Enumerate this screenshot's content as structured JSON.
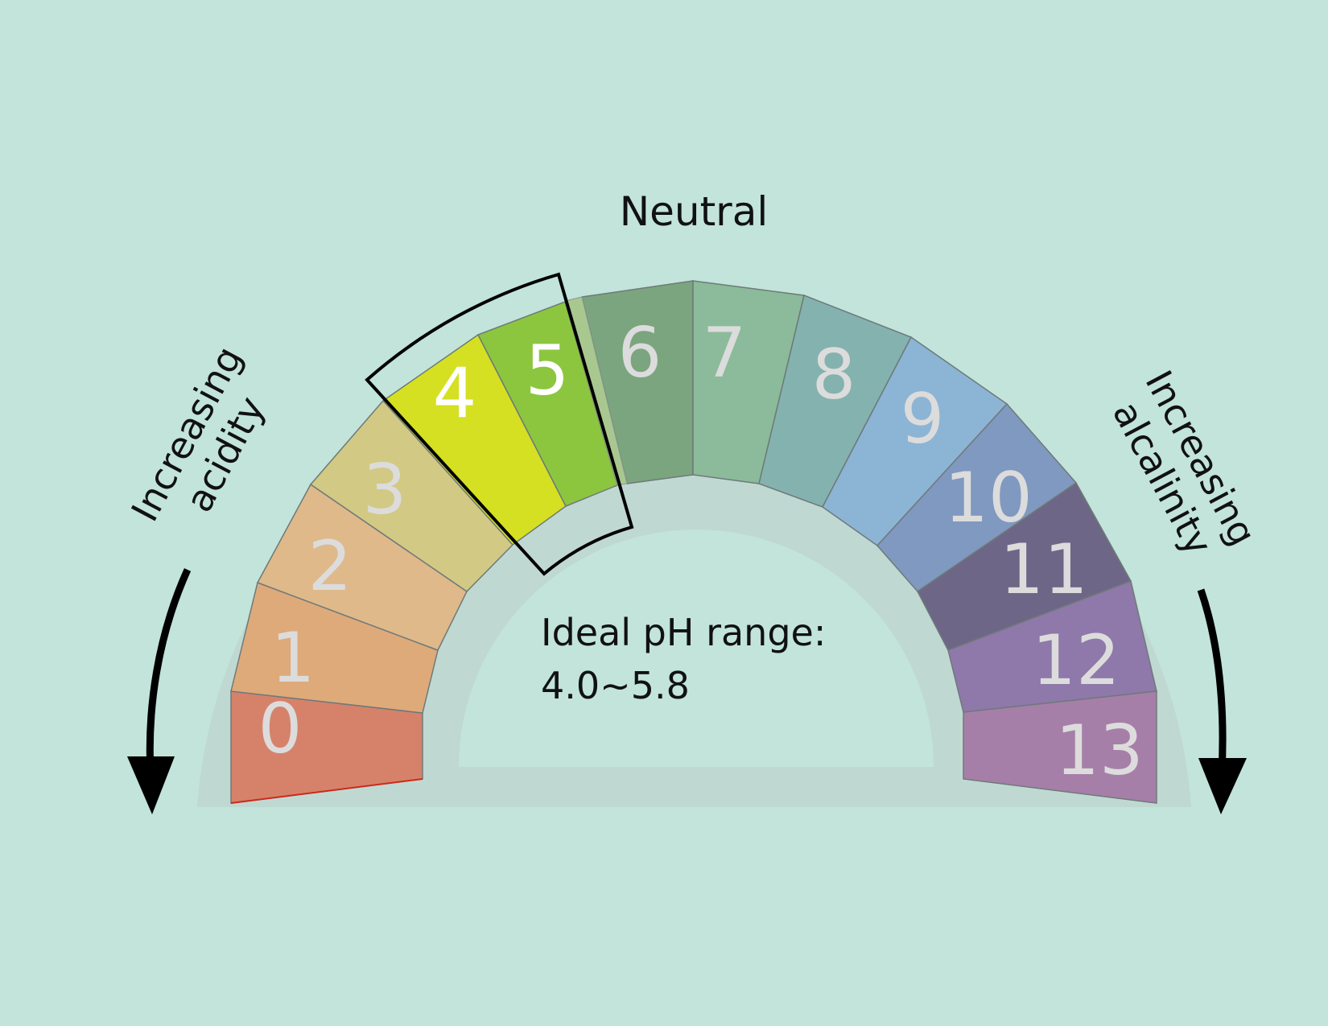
{
  "title": "",
  "labels": {
    "neutral": "Neutral",
    "acidity_line1": "Increasing",
    "acidity_line2": "acidity",
    "alkalinity_line1": "Increasing",
    "alkalinity_line2": "alcalinity",
    "ideal_line1": "Ideal pH range:",
    "ideal_line2": "4.0~5.8"
  },
  "ideal_range": {
    "min": 4.0,
    "max": 5.8
  },
  "colors": {
    "background": "#c2e4da",
    "track": "#c0d8d2",
    "number_text": "#dcdcdc",
    "highlight_number_text": "#ffffff",
    "highlight_frame": "#000000",
    "neutral_sliver": "#a8c890"
  },
  "segments": [
    {
      "ph": "0",
      "color": "#d6826b"
    },
    {
      "ph": "1",
      "color": "#deaa7a"
    },
    {
      "ph": "2",
      "color": "#dfb98a"
    },
    {
      "ph": "3",
      "color": "#d2c984"
    },
    {
      "ph": "4",
      "color": "#d5e022"
    },
    {
      "ph": "5",
      "color": "#8cc63f"
    },
    {
      "ph": "6",
      "color": "#7ba57e"
    },
    {
      "ph": "7",
      "color": "#8bbb9a"
    },
    {
      "ph": "8",
      "color": "#84b2af"
    },
    {
      "ph": "9",
      "color": "#8cb4d5"
    },
    {
      "ph": "10",
      "color": "#8099c0"
    },
    {
      "ph": "11",
      "color": "#6e6687"
    },
    {
      "ph": "12",
      "color": "#8f78aa"
    },
    {
      "ph": "13",
      "color": "#a67fa9"
    }
  ]
}
